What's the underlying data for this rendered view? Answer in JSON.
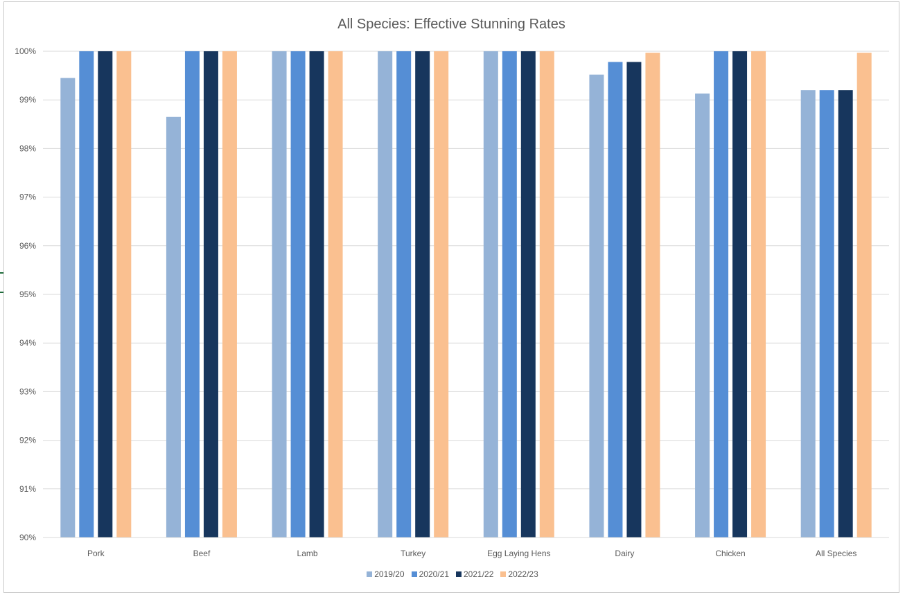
{
  "chart_data": {
    "type": "bar",
    "title": "All Species: Effective Stunning Rates",
    "xlabel": "",
    "ylabel": "",
    "ylim": [
      90,
      100
    ],
    "yticks": [
      "90%",
      "91%",
      "92%",
      "93%",
      "94%",
      "95%",
      "96%",
      "97%",
      "98%",
      "99%",
      "100%"
    ],
    "grid": true,
    "legend_position": "bottom",
    "categories": [
      "Pork",
      "Beef",
      "Lamb",
      "Turkey",
      "Egg Laying Hens",
      "Dairy",
      "Chicken",
      "All Species"
    ],
    "series": [
      {
        "name": "2019/20",
        "color": "#95B3D7",
        "values": [
          99.45,
          98.65,
          100,
          100,
          100,
          99.52,
          99.13,
          99.2
        ]
      },
      {
        "name": "2020/21",
        "color": "#558ED5",
        "values": [
          100,
          100,
          100,
          100,
          100,
          99.78,
          100,
          99.2
        ]
      },
      {
        "name": "2021/22",
        "color": "#17365D",
        "values": [
          100,
          100,
          100,
          100,
          100,
          99.78,
          100,
          99.2
        ]
      },
      {
        "name": "2022/23",
        "color": "#FAC090",
        "values": [
          100,
          100,
          100,
          100,
          100,
          99.97,
          100,
          99.97
        ]
      }
    ]
  }
}
